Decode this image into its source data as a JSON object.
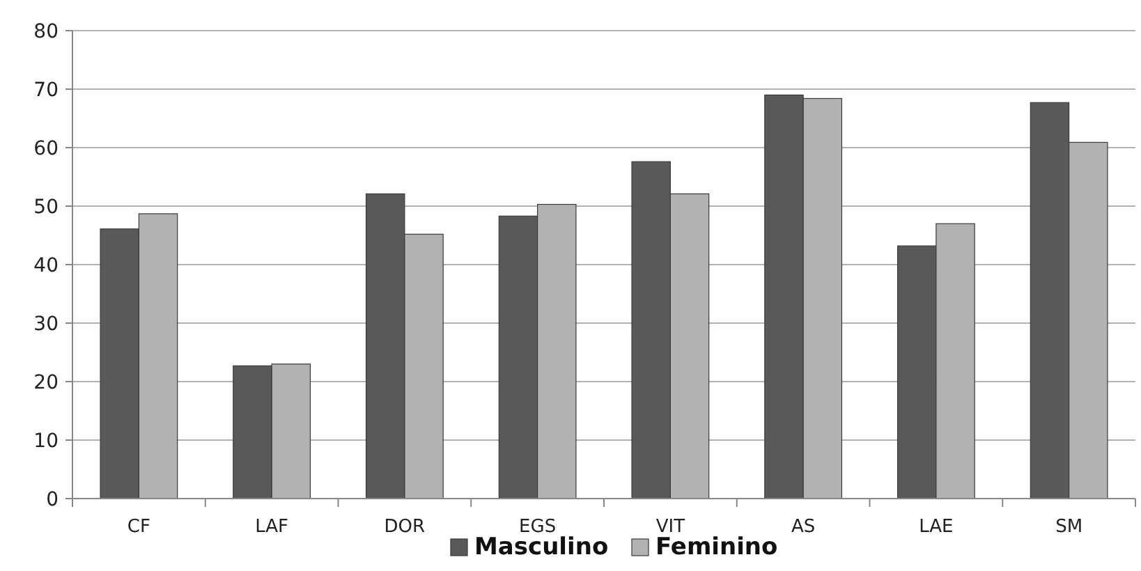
{
  "chart_data": {
    "type": "bar",
    "categories": [
      "CF",
      "LAF",
      "DOR",
      "EGS",
      "VIT",
      "AS",
      "LAE",
      "SM"
    ],
    "series": [
      {
        "name": "Masculino",
        "color": "#595959",
        "values": [
          46.1,
          22.7,
          52.1,
          48.3,
          57.6,
          69.0,
          43.2,
          67.7
        ]
      },
      {
        "name": "Feminino",
        "color": "#b2b2b2",
        "values": [
          48.7,
          23.0,
          45.2,
          50.3,
          52.1,
          68.4,
          47.0,
          60.9
        ]
      }
    ],
    "ylim": [
      0,
      80
    ],
    "yticks": [
      0,
      10,
      20,
      30,
      40,
      50,
      60,
      70,
      80
    ],
    "grid": "y",
    "legend": "bottom"
  }
}
